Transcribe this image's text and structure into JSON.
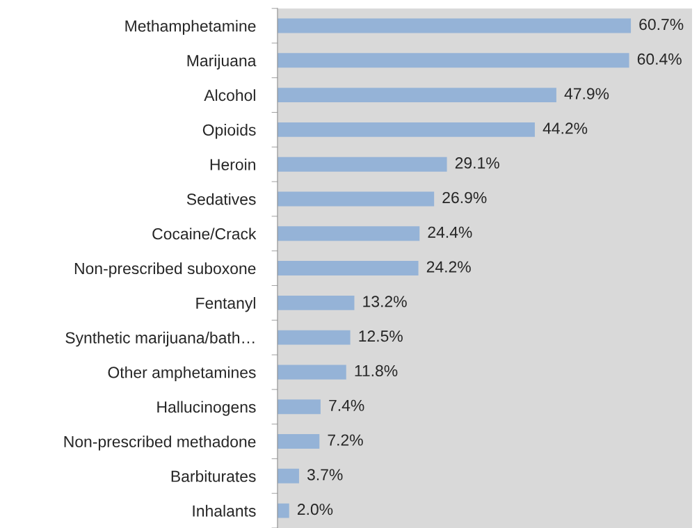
{
  "chart_data": {
    "type": "bar",
    "orientation": "horizontal",
    "categories": [
      "Methamphetamine",
      "Marijuana",
      "Alcohol",
      "Opioids",
      "Heroin",
      "Sedatives",
      "Cocaine/Crack",
      "Non-prescribed suboxone",
      "Fentanyl",
      "Synthetic marijuana/bath…",
      "Other amphetamines",
      "Hallucinogens",
      "Non-prescribed methadone",
      "Barbiturates",
      "Inhalants"
    ],
    "values": [
      60.7,
      60.4,
      47.9,
      44.2,
      29.1,
      26.9,
      24.4,
      24.2,
      13.2,
      12.5,
      11.8,
      7.4,
      7.2,
      3.7,
      2.0
    ],
    "value_labels": [
      "60.7%",
      "60.4%",
      "47.9%",
      "44.2%",
      "29.1%",
      "26.9%",
      "24.4%",
      "24.2%",
      "13.2%",
      "12.5%",
      "11.8%",
      "7.4%",
      "7.2%",
      "3.7%",
      "2.0%"
    ],
    "color": "#95b3d7",
    "grid": false,
    "legend": false
  }
}
